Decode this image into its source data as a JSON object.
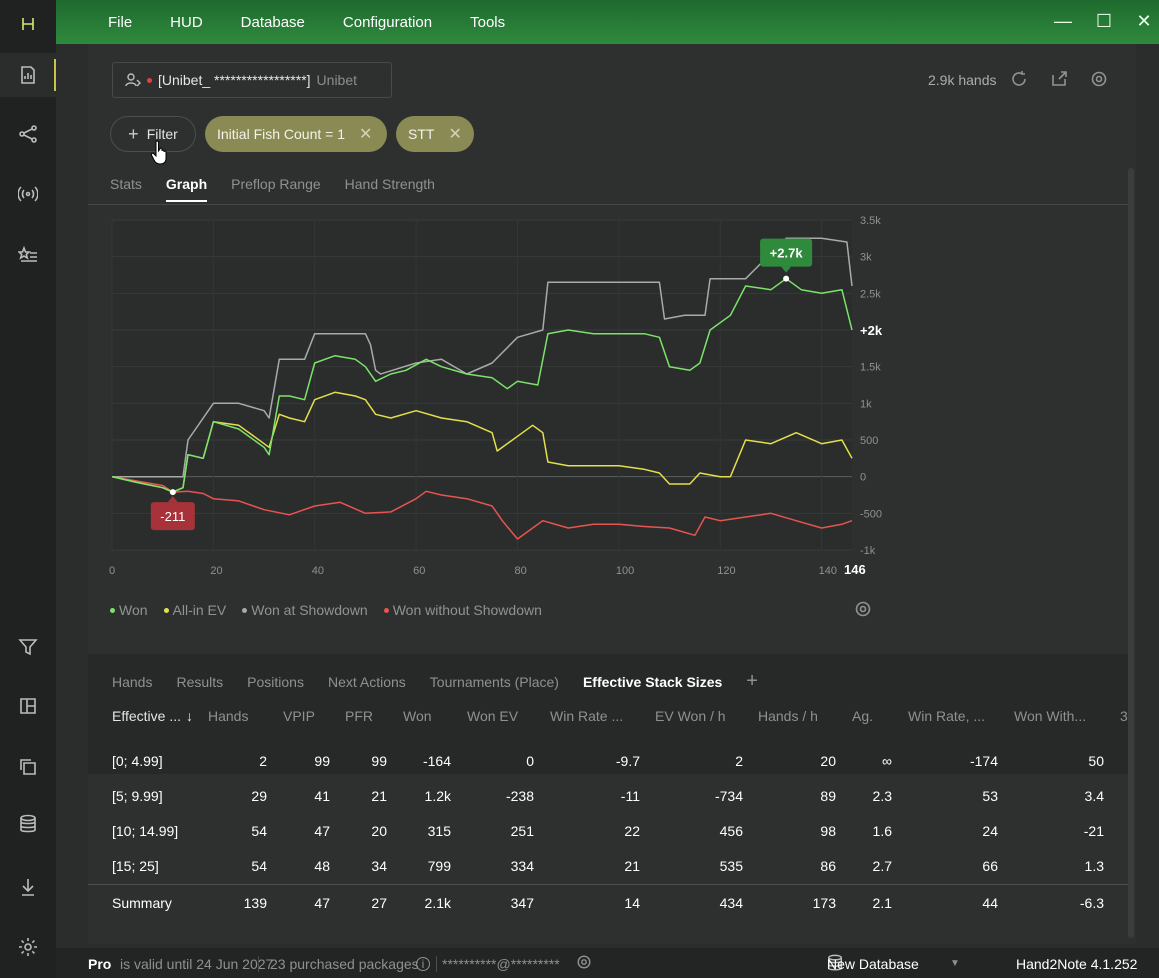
{
  "menu": [
    "File",
    "HUD",
    "Database",
    "Configuration",
    "Tools"
  ],
  "window_controls": {
    "minimize": "—",
    "maximize": "☐",
    "close": "✕"
  },
  "profile": {
    "name": "[Unibet_ *****************]",
    "room": "Unibet"
  },
  "header": {
    "hands": "2.9k hands"
  },
  "filter_button": "Filter",
  "chips": [
    {
      "label": "Initial Fish Count = 1",
      "x": "✕"
    },
    {
      "label": "STT",
      "x": "✕"
    }
  ],
  "tabs": [
    "Stats",
    "Graph",
    "Preflop Range",
    "Hand Strength"
  ],
  "graph": {
    "y_ticks": [
      "3.5k",
      "3k",
      "2.5k",
      "2k",
      "1.5k",
      "1k",
      "500",
      "0",
      "-500",
      "-1k"
    ],
    "x_ticks": [
      "0",
      "20",
      "40",
      "60",
      "80",
      "100",
      "120",
      "140"
    ],
    "x_last": "146",
    "end_label": "+2k",
    "max_label": "+2.7k",
    "min_label": "-211"
  },
  "legend": [
    {
      "label": "Won",
      "color": "#7ce36a"
    },
    {
      "label": "All-in EV",
      "color": "#e4df4a"
    },
    {
      "label": "Won at Showdown",
      "color": "#a7aaa9"
    },
    {
      "label": "Won without Showdown",
      "color": "#e8544f"
    }
  ],
  "chart_data": {
    "type": "line",
    "xlabel": "",
    "ylabel": "",
    "xlim": [
      0,
      146
    ],
    "ylim": [
      -1000,
      3500
    ],
    "grid": true,
    "legend_position": "bottom-left",
    "annotations": [
      {
        "text": "+2.7k",
        "x": 133,
        "y": 2700
      },
      {
        "text": "-211",
        "x": 12,
        "y": -211
      },
      {
        "text": "+2k",
        "x": 146,
        "y": 2000
      }
    ],
    "series": [
      {
        "name": "Won",
        "color": "#7ce36a",
        "x": [
          0,
          5,
          10,
          12,
          14,
          15,
          18,
          20,
          25,
          30,
          31,
          33,
          35,
          38,
          40,
          44,
          48,
          50,
          52,
          55,
          58,
          62,
          65,
          70,
          75,
          78,
          80,
          84,
          86,
          90,
          95,
          100,
          105,
          108,
          110,
          114,
          116,
          118,
          122,
          125,
          130,
          133,
          136,
          140,
          144,
          146
        ],
        "y": [
          0,
          -80,
          -150,
          -211,
          -150,
          300,
          250,
          750,
          650,
          400,
          300,
          1100,
          1100,
          1050,
          1550,
          1650,
          1600,
          1500,
          1300,
          1400,
          1450,
          1600,
          1500,
          1400,
          1350,
          1200,
          1300,
          1250,
          1950,
          2000,
          1950,
          1950,
          1950,
          1900,
          1500,
          1450,
          1550,
          2000,
          2200,
          2600,
          2550,
          2700,
          2550,
          2500,
          2550,
          2000
        ]
      },
      {
        "name": "All-in EV",
        "color": "#e4df4a",
        "x": [
          0,
          5,
          10,
          12,
          14,
          15,
          18,
          20,
          25,
          30,
          31,
          33,
          35,
          38,
          40,
          44,
          48,
          50,
          52,
          55,
          60,
          65,
          70,
          75,
          76,
          80,
          83,
          85,
          86,
          90,
          95,
          100,
          105,
          108,
          110,
          114,
          116,
          120,
          122,
          125,
          130,
          135,
          140,
          144,
          146
        ],
        "y": [
          0,
          -80,
          -150,
          -211,
          -150,
          300,
          250,
          750,
          700,
          450,
          400,
          850,
          800,
          750,
          1050,
          1150,
          1100,
          1050,
          850,
          800,
          900,
          800,
          750,
          600,
          350,
          550,
          700,
          600,
          200,
          150,
          150,
          150,
          100,
          50,
          -100,
          -100,
          50,
          0,
          0,
          500,
          450,
          600,
          450,
          500,
          250
        ]
      },
      {
        "name": "Won at Showdown",
        "color": "#a7aaa9",
        "x": [
          0,
          5,
          10,
          14,
          15,
          20,
          25,
          30,
          31,
          33,
          38,
          40,
          50,
          51,
          52,
          53,
          60,
          65,
          70,
          75,
          80,
          85,
          86,
          108,
          109,
          113,
          117,
          118,
          125,
          133,
          140,
          145,
          146
        ],
        "y": [
          0,
          0,
          0,
          0,
          500,
          1000,
          1000,
          900,
          800,
          1600,
          1600,
          1950,
          1950,
          1800,
          1450,
          1400,
          1550,
          1600,
          1400,
          1550,
          1900,
          2000,
          2650,
          2650,
          2150,
          2200,
          2200,
          2700,
          2700,
          3250,
          3250,
          3200,
          2600
        ]
      },
      {
        "name": "Won without Showdown",
        "color": "#e8544f",
        "x": [
          0,
          5,
          10,
          12,
          15,
          18,
          20,
          25,
          30,
          35,
          40,
          45,
          50,
          55,
          60,
          62,
          65,
          70,
          75,
          77,
          80,
          83,
          85,
          90,
          95,
          100,
          105,
          110,
          115,
          117,
          120,
          125,
          130,
          135,
          140,
          144,
          146
        ],
        "y": [
          0,
          -60,
          -120,
          -211,
          -200,
          -230,
          -300,
          -330,
          -450,
          -520,
          -400,
          -350,
          -500,
          -480,
          -300,
          -200,
          -250,
          -300,
          -400,
          -600,
          -850,
          -700,
          -600,
          -700,
          -650,
          -650,
          -680,
          -700,
          -800,
          -550,
          -600,
          -550,
          -500,
          -600,
          -700,
          -650,
          -600
        ]
      }
    ]
  },
  "bottom_tabs": [
    "Hands",
    "Results",
    "Positions",
    "Next Actions",
    "Tournaments (Place)",
    "Effective Stack Sizes"
  ],
  "bottom_tabs_add": "+",
  "table": {
    "headers": [
      "Effective ...",
      "↓",
      "Hands",
      "VPIP",
      "PFR",
      "Won",
      "Won EV",
      "Win Rate ...",
      "EV Won / h",
      "Hands / h",
      "Ag.",
      "Win Rate, ...",
      "Won With...",
      "3"
    ],
    "rows": [
      {
        "label": "[0; 4.99]",
        "hands": "2",
        "vpip": "99",
        "pfr": "99",
        "won": "-164",
        "won_ev": "0",
        "win_rate": "-9.7",
        "ev_won_h": "2",
        "hands_h": "20",
        "ag": "∞",
        "win_rate2": "-174",
        "won_with": "50"
      },
      {
        "label": "[5; 9.99]",
        "hands": "29",
        "vpip": "41",
        "pfr": "21",
        "won": "1.2k",
        "won_ev": "-238",
        "win_rate": "-11",
        "ev_won_h": "-734",
        "hands_h": "89",
        "ag": "2.3",
        "win_rate2": "53",
        "won_with": "3.4"
      },
      {
        "label": "[10; 14.99]",
        "hands": "54",
        "vpip": "47",
        "pfr": "20",
        "won": "315",
        "won_ev": "251",
        "win_rate": "22",
        "ev_won_h": "456",
        "hands_h": "98",
        "ag": "1.6",
        "win_rate2": "24",
        "won_with": "-21"
      },
      {
        "label": "[15; 25]",
        "hands": "54",
        "vpip": "48",
        "pfr": "34",
        "won": "799",
        "won_ev": "334",
        "win_rate": "21",
        "ev_won_h": "535",
        "hands_h": "86",
        "ag": "2.7",
        "win_rate2": "66",
        "won_with": "1.3"
      }
    ],
    "summary": {
      "label": "Summary",
      "hands": "139",
      "vpip": "47",
      "pfr": "27",
      "won": "2.1k",
      "won_ev": "347",
      "win_rate": "14",
      "ev_won_h": "434",
      "hands_h": "173",
      "ag": "2.1",
      "win_rate2": "44",
      "won_with": "-6.3"
    }
  },
  "status": {
    "plan": "Pro",
    "valid": "is valid until 24 Jun 2027",
    "packages": "23 purchased packages",
    "account": "**********@*********",
    "database": "New Database",
    "version": "Hand2Note 4.1.252"
  }
}
